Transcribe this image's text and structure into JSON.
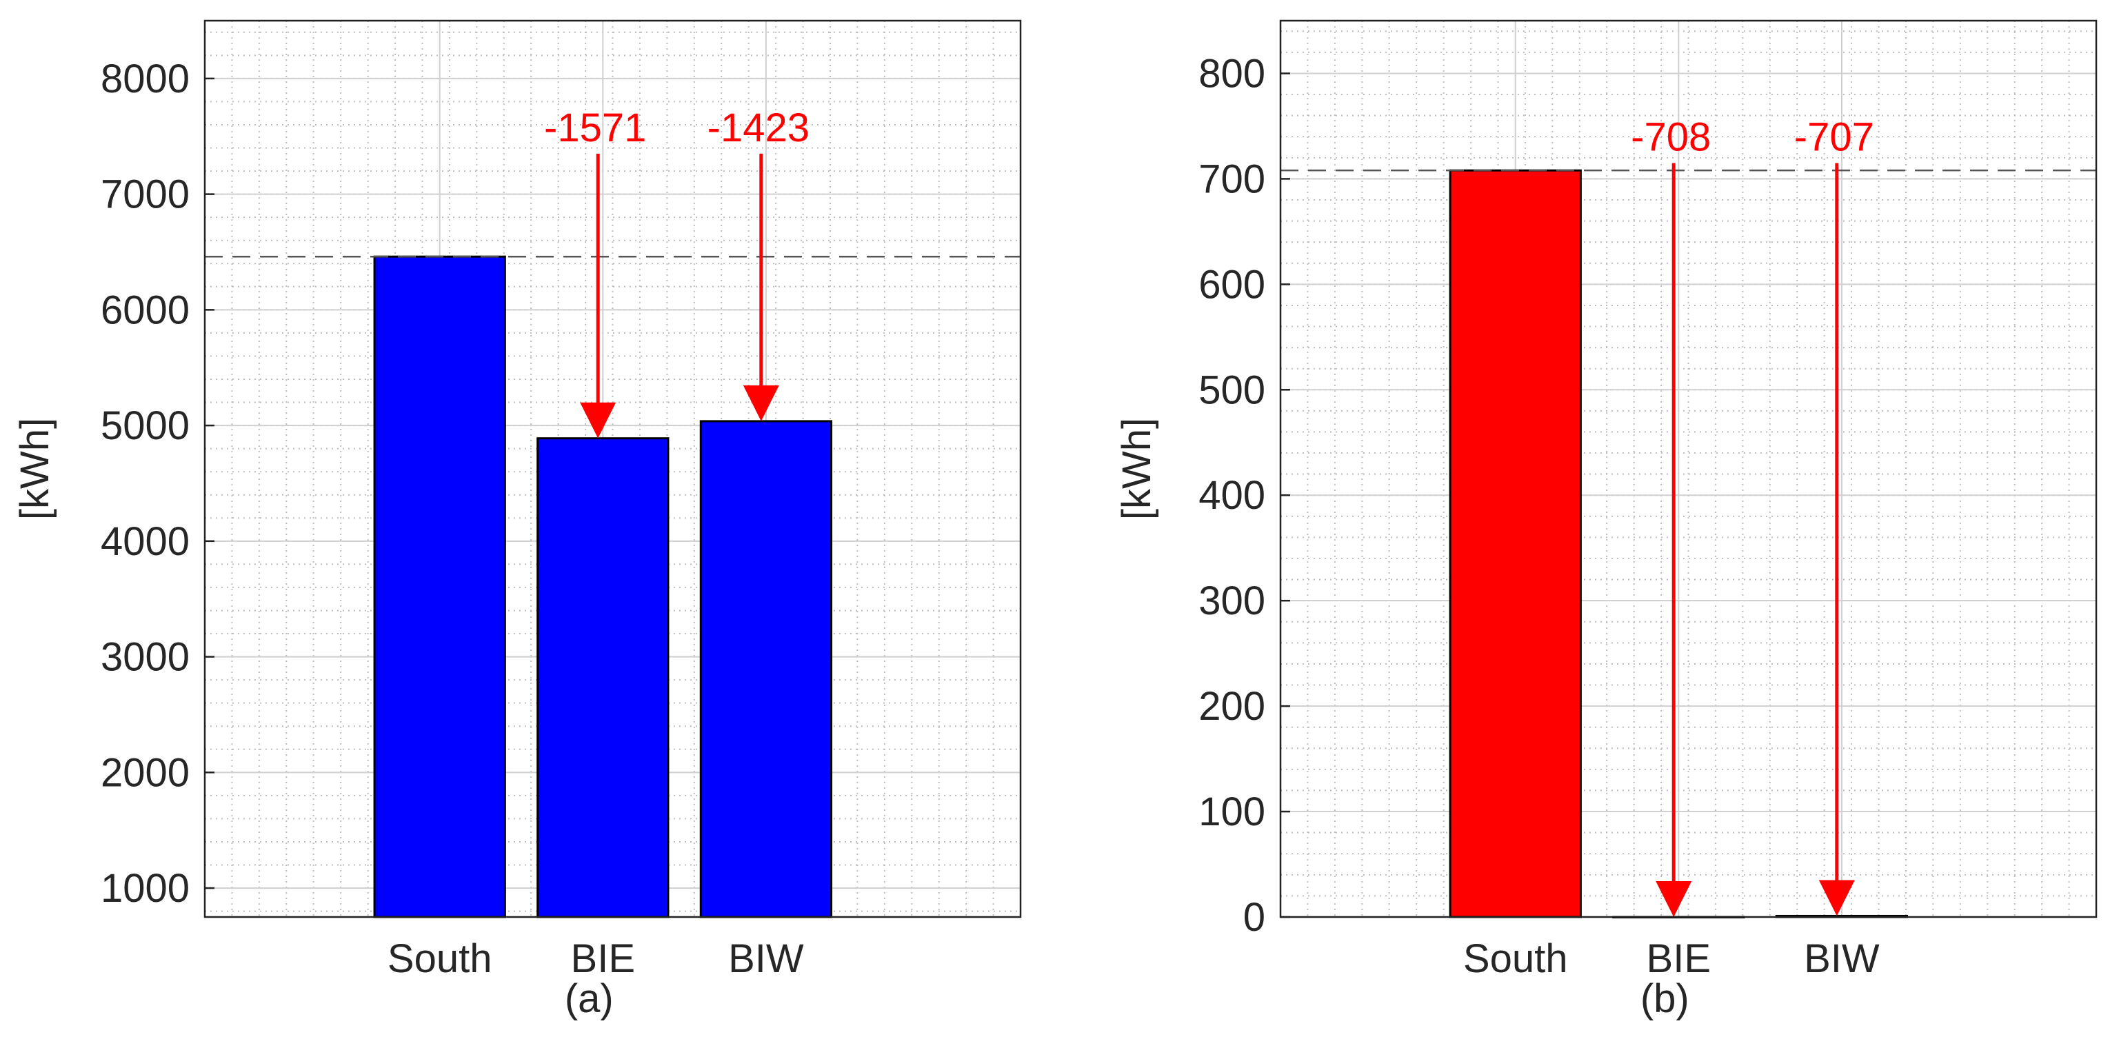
{
  "colors": {
    "panel_a_bar": "#0000ff",
    "panel_b_bar": "#ff0000",
    "arrow": "#ff0000",
    "reference_line": "#555555",
    "grid_major": "#d0d0d0",
    "grid_minor": "#bdbdbd",
    "background": "#ffffff"
  },
  "chart_data": [
    {
      "type": "bar",
      "panel_label": "(a)",
      "ylabel": "[kWh]",
      "xlabel": "",
      "categories": [
        "South",
        "BIE",
        "BIW"
      ],
      "values": [
        6460,
        4889,
        5037
      ],
      "ylim": [
        750,
        8500
      ],
      "yticks": [
        1000,
        2000,
        3000,
        4000,
        5000,
        6000,
        7000,
        8000
      ],
      "reference_line": 6460,
      "grid": true,
      "minor_grid": true,
      "annotations": [
        {
          "category": "BIE",
          "text": "-1571",
          "arrow_from": 7350,
          "arrow_to": 4889
        },
        {
          "category": "BIW",
          "text": "-1423",
          "arrow_from": 7350,
          "arrow_to": 5037
        }
      ]
    },
    {
      "type": "bar",
      "panel_label": "(b)",
      "ylabel": "[kWh]",
      "xlabel": "",
      "categories": [
        "South",
        "BIE",
        "BIW"
      ],
      "values": [
        708,
        0,
        1
      ],
      "ylim": [
        0,
        850
      ],
      "yticks": [
        0,
        100,
        200,
        300,
        400,
        500,
        600,
        700,
        800
      ],
      "reference_line": 708,
      "grid": true,
      "minor_grid": true,
      "annotations": [
        {
          "category": "BIE",
          "text": "-708",
          "arrow_from": 715,
          "arrow_to": 0
        },
        {
          "category": "BIW",
          "text": "-707",
          "arrow_from": 715,
          "arrow_to": 1
        }
      ]
    }
  ]
}
